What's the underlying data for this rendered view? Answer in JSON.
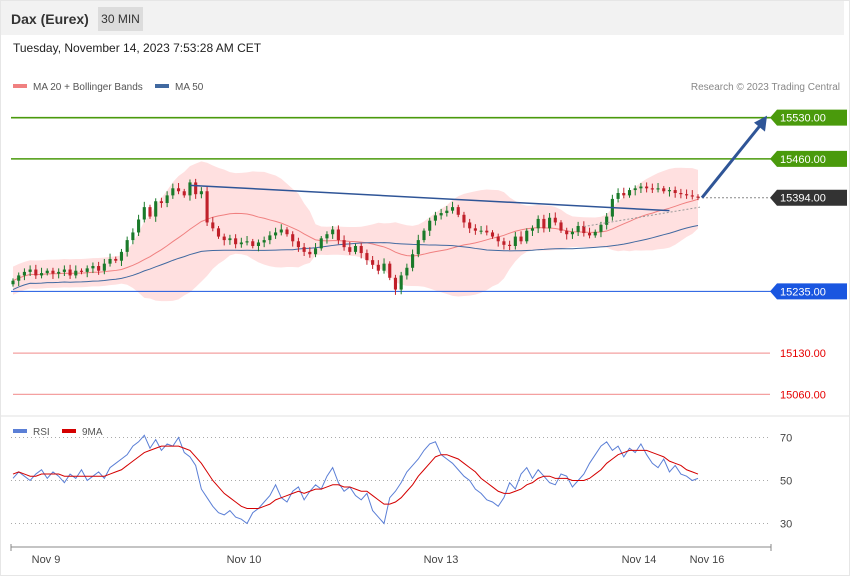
{
  "header": {
    "title": "Dax (Eurex)",
    "timeframe": "30 MIN",
    "date": "Tuesday, November 14, 2023 7:53:28 AM CET"
  },
  "legend": {
    "bollinger": "MA 20 + Bollinger Bands",
    "ma50": "MA 50",
    "copyright": "Research © 2023 Trading Central",
    "rsi": "RSI",
    "rsi_ma": "9MA"
  },
  "colors": {
    "support_resistance_green": "#4a9a0c",
    "pivot_blue": "#1a56e0",
    "target_red": "#e60000",
    "trend_arrow": "#2f5597",
    "bollinger": "#ffcccc",
    "ma20": "#f08080",
    "ma50": "#4169a0",
    "candle_up": "#1a7a2a",
    "candle_down": "#c0202a",
    "rsi_line": "#5b7fd6",
    "rsi_ma_line": "#d40000"
  },
  "chart_data": [
    {
      "type": "candlestick",
      "title": "Dax (Eurex)",
      "timeframe": "30 MIN",
      "ylim": [
        15030,
        15560
      ],
      "x_ticks": [
        "Nov 9",
        "Nov 10",
        "Nov 13",
        "Nov 14",
        "Nov 16"
      ],
      "levels": [
        {
          "value": 15530.0,
          "label": "15530.00",
          "kind": "resistance"
        },
        {
          "value": 15460.0,
          "label": "15460.00",
          "kind": "resistance"
        },
        {
          "value": 15394.0,
          "label": "15394.00",
          "kind": "last"
        },
        {
          "value": 15235.0,
          "label": "15235.00",
          "kind": "pivot"
        },
        {
          "value": 15130.0,
          "label": "15130.00",
          "kind": "support"
        },
        {
          "value": 15060.0,
          "label": "15060.00",
          "kind": "support"
        }
      ],
      "closes": [
        15253,
        15262,
        15268,
        15272,
        15262,
        15266,
        15270,
        15265,
        15268,
        15272,
        15262,
        15270,
        15268,
        15274,
        15278,
        15270,
        15282,
        15290,
        15287,
        15302,
        15322,
        15335,
        15357,
        15378,
        15362,
        15388,
        15385,
        15398,
        15410,
        15405,
        15398,
        15420,
        15400,
        15405,
        15352,
        15342,
        15328,
        15322,
        15325,
        15315,
        15318,
        15320,
        15312,
        15318,
        15322,
        15330,
        15335,
        15340,
        15332,
        15320,
        15310,
        15302,
        15298,
        15308,
        15325,
        15332,
        15340,
        15322,
        15310,
        15302,
        15312,
        15300,
        15288,
        15280,
        15270,
        15282,
        15258,
        15238,
        15262,
        15275,
        15298,
        15322,
        15338,
        15355,
        15364,
        15368,
        15372,
        15378,
        15365,
        15352,
        15342,
        15338,
        15338,
        15335,
        15328,
        15320,
        15314,
        15312,
        15328,
        15320,
        15338,
        15342,
        15358,
        15342,
        15360,
        15352,
        15338,
        15332,
        15336,
        15346,
        15334,
        15330,
        15336,
        15348,
        15362,
        15392,
        15402,
        15398,
        15407,
        15410,
        15413,
        15410,
        15408,
        15410,
        15405,
        15407,
        15402,
        15400,
        15398,
        15396,
        15394
      ],
      "x_range_note": "Nov 9 to Nov 14",
      "trend_line": "descending resistance from Nov 10 high to Nov 14",
      "arrow_target": 15530.0
    },
    {
      "type": "line",
      "title": "RSI",
      "series": [
        {
          "name": "RSI"
        },
        {
          "name": "9MA"
        }
      ],
      "ylim": [
        20,
        80
      ],
      "y_ticks": [
        70,
        50,
        30
      ],
      "rsi": [
        51,
        54,
        52,
        50,
        53,
        55,
        51,
        54,
        52,
        49,
        53,
        51,
        55,
        50,
        52,
        54,
        51,
        56,
        58,
        60,
        62,
        66,
        68,
        71,
        65,
        69,
        64,
        67,
        66,
        70,
        63,
        61,
        57,
        46,
        42,
        38,
        35,
        34,
        36,
        33,
        32,
        30,
        35,
        37,
        40,
        43,
        48,
        42,
        40,
        45,
        47,
        41,
        45,
        48,
        46,
        52,
        56,
        49,
        45,
        47,
        43,
        41,
        44,
        36,
        33,
        30,
        42,
        45,
        49,
        54,
        57,
        60,
        64,
        67,
        68,
        62,
        60,
        58,
        55,
        52,
        50,
        46,
        44,
        41,
        40,
        38,
        42,
        49,
        46,
        53,
        56,
        51,
        55,
        52,
        49,
        48,
        53,
        52,
        47,
        50,
        53,
        58,
        62,
        66,
        68,
        64,
        66,
        61,
        65,
        63,
        67,
        62,
        58,
        56,
        60,
        54,
        57,
        53,
        52,
        50,
        51
      ],
      "rsi_ma": [
        53,
        54,
        53,
        52,
        52,
        53,
        53,
        53,
        53,
        52,
        52,
        52,
        52,
        52,
        52,
        52,
        52,
        53,
        54,
        55,
        57,
        59,
        61,
        63,
        64,
        65,
        66,
        66,
        66,
        66,
        65,
        64,
        61,
        58,
        54,
        50,
        47,
        44,
        42,
        40,
        38,
        37,
        37,
        37,
        38,
        39,
        41,
        42,
        43,
        44,
        45,
        44,
        45,
        46,
        46,
        47,
        48,
        48,
        47,
        47,
        46,
        45,
        45,
        43,
        41,
        39,
        39,
        40,
        42,
        45,
        48,
        52,
        55,
        58,
        61,
        62,
        62,
        61,
        60,
        58,
        56,
        54,
        51,
        49,
        47,
        45,
        44,
        44,
        45,
        46,
        48,
        49,
        51,
        52,
        52,
        51,
        51,
        51,
        50,
        50,
        50,
        51,
        53,
        55,
        58,
        60,
        62,
        63,
        64,
        64,
        64,
        64,
        63,
        62,
        61,
        59,
        58,
        57,
        55,
        54,
        53
      ]
    }
  ]
}
